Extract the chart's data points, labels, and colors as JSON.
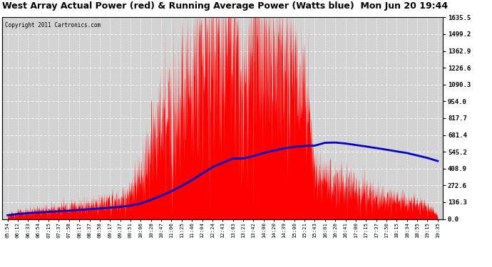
{
  "title": "West Array Actual Power (red) & Running Average Power (Watts blue)  Mon Jun 20 19:44",
  "copyright": "Copyright 2011 Cartronics.com",
  "y_ticks": [
    0.0,
    136.3,
    272.6,
    408.9,
    545.2,
    681.4,
    817.7,
    954.0,
    1090.3,
    1226.6,
    1362.9,
    1499.2,
    1635.5
  ],
  "ylim": [
    0,
    1635.5
  ],
  "bg_color": "#ffffff",
  "plot_bg_color": "#d3d3d3",
  "grid_color": "#ffffff",
  "actual_color": "#ff0000",
  "avg_color": "#0000cc",
  "title_fontsize": 9,
  "x_labels": [
    "05:54",
    "06:12",
    "06:33",
    "06:54",
    "07:15",
    "07:37",
    "07:58",
    "08:17",
    "08:37",
    "08:58",
    "09:17",
    "09:37",
    "09:51",
    "10:06",
    "10:28",
    "10:47",
    "11:06",
    "11:25",
    "11:46",
    "12:04",
    "12:24",
    "12:43",
    "13:03",
    "13:21",
    "13:42",
    "14:00",
    "14:20",
    "14:39",
    "15:00",
    "15:21",
    "15:43",
    "16:01",
    "16:20",
    "16:41",
    "17:00",
    "17:15",
    "17:37",
    "17:56",
    "18:15",
    "18:34",
    "18:55",
    "19:15",
    "19:35"
  ],
  "actual_values": [
    30,
    50,
    60,
    70,
    80,
    90,
    100,
    110,
    120,
    130,
    140,
    150,
    200,
    350,
    600,
    750,
    900,
    1050,
    1200,
    1380,
    1550,
    1480,
    1620,
    900,
    1580,
    1400,
    1350,
    1300,
    1200,
    1100,
    350,
    300,
    320,
    280,
    250,
    220,
    200,
    180,
    160,
    140,
    120,
    100,
    30
  ],
  "avg_values": [
    30,
    40,
    47,
    52,
    57,
    62,
    67,
    73,
    79,
    85,
    91,
    98,
    108,
    125,
    155,
    188,
    225,
    268,
    315,
    368,
    420,
    455,
    490,
    490,
    510,
    535,
    555,
    572,
    585,
    593,
    595,
    618,
    620,
    612,
    600,
    588,
    575,
    562,
    548,
    535,
    515,
    495,
    470
  ]
}
